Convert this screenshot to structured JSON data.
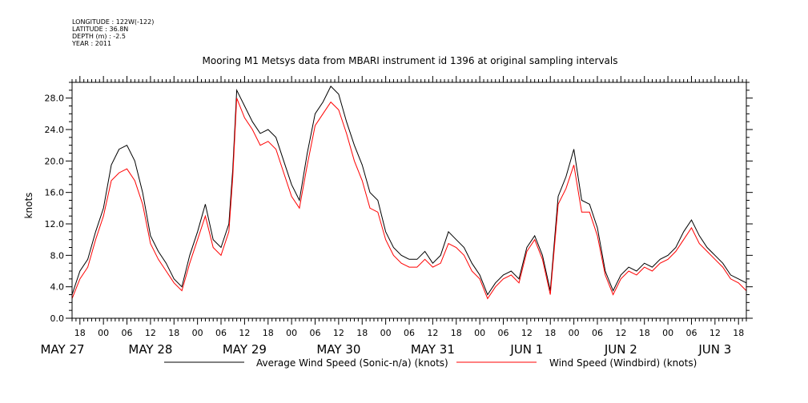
{
  "header": {
    "longitude": "LONGITUDE : 122W(-122)",
    "latitude": "LATITUDE : 36.8N",
    "depth": "DEPTH (m) : -2.5",
    "year": "YEAR : 2011"
  },
  "chart_data": {
    "type": "line",
    "title": "Mooring M1 Metsys data from MBARI instrument id 1396 at original sampling intervals",
    "ylabel": "knots",
    "xlabel": "",
    "ylim": [
      0,
      30
    ],
    "yticks": [
      "0.0",
      "4.0",
      "8.0",
      "12.0",
      "16.0",
      "20.0",
      "24.0",
      "28.0"
    ],
    "xlim": [
      "2011-05-27T16:00",
      "2011-06-03T20:00"
    ],
    "x_hour_ticks": [
      "18",
      "00",
      "06",
      "12",
      "18",
      "00",
      "06",
      "12",
      "18",
      "00",
      "06",
      "12",
      "18",
      "00",
      "06",
      "12",
      "18",
      "00",
      "06",
      "12",
      "18",
      "00",
      "06",
      "12",
      "18",
      "00",
      "06",
      "12",
      "18",
      "00",
      "06",
      "12"
    ],
    "x_date_labels": [
      {
        "label": "MAY 27",
        "x": "2011-05-27T12:00"
      },
      {
        "label": "MAY 28",
        "x": "2011-05-28T12:00"
      },
      {
        "label": "MAY 29",
        "x": "2011-05-29T12:00"
      },
      {
        "label": "MAY 30",
        "x": "2011-05-30T12:00"
      },
      {
        "label": "MAY 31",
        "x": "2011-05-31T12:00"
      },
      {
        "label": "JUN 1",
        "x": "2011-06-01T12:00"
      },
      {
        "label": "JUN 2",
        "x": "2011-06-02T12:00"
      },
      {
        "label": "JUN 3",
        "x": "2011-06-03T12:00"
      }
    ],
    "grid": false,
    "legend": "bottom",
    "series": [
      {
        "name": "Average Wind Speed (Sonic-n/a) (knots)",
        "color": "#000000",
        "points": [
          [
            "2011-05-27T16:00",
            3.0
          ],
          [
            "2011-05-27T18:00",
            6.0
          ],
          [
            "2011-05-27T20:00",
            7.5
          ],
          [
            "2011-05-27T22:00",
            11.0
          ],
          [
            "2011-05-28T00:00",
            14.0
          ],
          [
            "2011-05-28T02:00",
            19.5
          ],
          [
            "2011-05-28T04:00",
            21.5
          ],
          [
            "2011-05-28T06:00",
            22.0
          ],
          [
            "2011-05-28T08:00",
            20.0
          ],
          [
            "2011-05-28T10:00",
            16.0
          ],
          [
            "2011-05-28T12:00",
            10.5
          ],
          [
            "2011-05-28T14:00",
            8.5
          ],
          [
            "2011-05-28T16:00",
            7.0
          ],
          [
            "2011-05-28T18:00",
            5.0
          ],
          [
            "2011-05-28T20:00",
            4.0
          ],
          [
            "2011-05-28T22:00",
            8.0
          ],
          [
            "2011-05-29T00:00",
            11.0
          ],
          [
            "2011-05-29T02:00",
            14.5
          ],
          [
            "2011-05-29T04:00",
            10.0
          ],
          [
            "2011-05-29T06:00",
            9.0
          ],
          [
            "2011-05-29T08:00",
            12.0
          ],
          [
            "2011-05-29T09:00",
            19.0
          ],
          [
            "2011-05-29T10:00",
            29.0
          ],
          [
            "2011-05-29T12:00",
            27.0
          ],
          [
            "2011-05-29T14:00",
            25.0
          ],
          [
            "2011-05-29T16:00",
            23.5
          ],
          [
            "2011-05-29T18:00",
            24.0
          ],
          [
            "2011-05-29T20:00",
            23.0
          ],
          [
            "2011-05-29T22:00",
            20.0
          ],
          [
            "2011-05-30T00:00",
            17.0
          ],
          [
            "2011-05-30T02:00",
            15.0
          ],
          [
            "2011-05-30T04:00",
            21.0
          ],
          [
            "2011-05-30T06:00",
            26.0
          ],
          [
            "2011-05-30T08:00",
            27.5
          ],
          [
            "2011-05-30T10:00",
            29.5
          ],
          [
            "2011-05-30T12:00",
            28.5
          ],
          [
            "2011-05-30T14:00",
            25.0
          ],
          [
            "2011-05-30T16:00",
            22.0
          ],
          [
            "2011-05-30T18:00",
            19.5
          ],
          [
            "2011-05-30T20:00",
            16.0
          ],
          [
            "2011-05-30T22:00",
            15.0
          ],
          [
            "2011-05-31T00:00",
            11.0
          ],
          [
            "2011-05-31T02:00",
            9.0
          ],
          [
            "2011-05-31T04:00",
            8.0
          ],
          [
            "2011-05-31T06:00",
            7.5
          ],
          [
            "2011-05-31T08:00",
            7.5
          ],
          [
            "2011-05-31T10:00",
            8.5
          ],
          [
            "2011-05-31T12:00",
            7.0
          ],
          [
            "2011-05-31T14:00",
            8.0
          ],
          [
            "2011-05-31T16:00",
            11.0
          ],
          [
            "2011-05-31T18:00",
            10.0
          ],
          [
            "2011-05-31T20:00",
            9.0
          ],
          [
            "2011-05-31T22:00",
            7.0
          ],
          [
            "2011-06-01T00:00",
            5.5
          ],
          [
            "2011-06-01T02:00",
            3.0
          ],
          [
            "2011-06-01T04:00",
            4.5
          ],
          [
            "2011-06-01T06:00",
            5.5
          ],
          [
            "2011-06-01T08:00",
            6.0
          ],
          [
            "2011-06-01T10:00",
            5.0
          ],
          [
            "2011-06-01T12:00",
            9.0
          ],
          [
            "2011-06-01T14:00",
            10.5
          ],
          [
            "2011-06-01T16:00",
            8.0
          ],
          [
            "2011-06-01T18:00",
            3.5
          ],
          [
            "2011-06-01T20:00",
            15.5
          ],
          [
            "2011-06-01T22:00",
            18.0
          ],
          [
            "2011-06-02T00:00",
            21.5
          ],
          [
            "2011-06-02T02:00",
            15.0
          ],
          [
            "2011-06-02T04:00",
            14.5
          ],
          [
            "2011-06-02T06:00",
            11.5
          ],
          [
            "2011-06-02T08:00",
            6.0
          ],
          [
            "2011-06-02T10:00",
            3.5
          ],
          [
            "2011-06-02T12:00",
            5.5
          ],
          [
            "2011-06-02T14:00",
            6.5
          ],
          [
            "2011-06-02T16:00",
            6.0
          ],
          [
            "2011-06-02T18:00",
            7.0
          ],
          [
            "2011-06-02T20:00",
            6.5
          ],
          [
            "2011-06-02T22:00",
            7.5
          ],
          [
            "2011-06-03T00:00",
            8.0
          ],
          [
            "2011-06-03T02:00",
            9.0
          ],
          [
            "2011-06-03T04:00",
            11.0
          ],
          [
            "2011-06-03T06:00",
            12.5
          ],
          [
            "2011-06-03T08:00",
            10.5
          ],
          [
            "2011-06-03T10:00",
            9.0
          ],
          [
            "2011-06-03T12:00",
            8.0
          ],
          [
            "2011-06-03T14:00",
            7.0
          ],
          [
            "2011-06-03T16:00",
            5.5
          ],
          [
            "2011-06-03T18:00",
            5.0
          ],
          [
            "2011-06-03T20:00",
            4.5
          ]
        ]
      },
      {
        "name": "Wind Speed (Windbird) (knots)",
        "color": "#ff0000",
        "points": [
          [
            "2011-05-27T16:00",
            2.5
          ],
          [
            "2011-05-27T18:00",
            5.0
          ],
          [
            "2011-05-27T20:00",
            6.5
          ],
          [
            "2011-05-27T22:00",
            10.0
          ],
          [
            "2011-05-28T00:00",
            13.0
          ],
          [
            "2011-05-28T02:00",
            17.5
          ],
          [
            "2011-05-28T04:00",
            18.5
          ],
          [
            "2011-05-28T06:00",
            19.0
          ],
          [
            "2011-05-28T08:00",
            17.5
          ],
          [
            "2011-05-28T10:00",
            14.5
          ],
          [
            "2011-05-28T12:00",
            9.5
          ],
          [
            "2011-05-28T14:00",
            7.5
          ],
          [
            "2011-05-28T16:00",
            6.0
          ],
          [
            "2011-05-28T18:00",
            4.5
          ],
          [
            "2011-05-28T20:00",
            3.5
          ],
          [
            "2011-05-28T22:00",
            7.0
          ],
          [
            "2011-05-29T00:00",
            10.0
          ],
          [
            "2011-05-29T02:00",
            13.0
          ],
          [
            "2011-05-29T04:00",
            9.0
          ],
          [
            "2011-05-29T06:00",
            8.0
          ],
          [
            "2011-05-29T08:00",
            11.0
          ],
          [
            "2011-05-29T09:00",
            18.0
          ],
          [
            "2011-05-29T10:00",
            28.0
          ],
          [
            "2011-05-29T12:00",
            25.5
          ],
          [
            "2011-05-29T14:00",
            24.0
          ],
          [
            "2011-05-29T16:00",
            22.0
          ],
          [
            "2011-05-29T18:00",
            22.5
          ],
          [
            "2011-05-29T20:00",
            21.5
          ],
          [
            "2011-05-29T22:00",
            18.5
          ],
          [
            "2011-05-30T00:00",
            15.5
          ],
          [
            "2011-05-30T02:00",
            14.0
          ],
          [
            "2011-05-30T04:00",
            19.5
          ],
          [
            "2011-05-30T06:00",
            24.5
          ],
          [
            "2011-05-30T08:00",
            26.0
          ],
          [
            "2011-05-30T10:00",
            27.5
          ],
          [
            "2011-05-30T12:00",
            26.5
          ],
          [
            "2011-05-30T14:00",
            23.5
          ],
          [
            "2011-05-30T16:00",
            20.0
          ],
          [
            "2011-05-30T18:00",
            17.5
          ],
          [
            "2011-05-30T20:00",
            14.0
          ],
          [
            "2011-05-30T22:00",
            13.5
          ],
          [
            "2011-05-31T00:00",
            10.0
          ],
          [
            "2011-05-31T02:00",
            8.0
          ],
          [
            "2011-05-31T04:00",
            7.0
          ],
          [
            "2011-05-31T06:00",
            6.5
          ],
          [
            "2011-05-31T08:00",
            6.5
          ],
          [
            "2011-05-31T10:00",
            7.5
          ],
          [
            "2011-05-31T12:00",
            6.5
          ],
          [
            "2011-05-31T14:00",
            7.0
          ],
          [
            "2011-05-31T16:00",
            9.5
          ],
          [
            "2011-05-31T18:00",
            9.0
          ],
          [
            "2011-05-31T20:00",
            8.0
          ],
          [
            "2011-05-31T22:00",
            6.0
          ],
          [
            "2011-06-01T00:00",
            5.0
          ],
          [
            "2011-06-01T02:00",
            2.5
          ],
          [
            "2011-06-01T04:00",
            4.0
          ],
          [
            "2011-06-01T06:00",
            5.0
          ],
          [
            "2011-06-01T08:00",
            5.5
          ],
          [
            "2011-06-01T10:00",
            4.5
          ],
          [
            "2011-06-01T12:00",
            8.5
          ],
          [
            "2011-06-01T14:00",
            10.0
          ],
          [
            "2011-06-01T16:00",
            7.5
          ],
          [
            "2011-06-01T18:00",
            3.0
          ],
          [
            "2011-06-01T20:00",
            14.5
          ],
          [
            "2011-06-01T22:00",
            16.5
          ],
          [
            "2011-06-02T00:00",
            19.5
          ],
          [
            "2011-06-02T02:00",
            13.5
          ],
          [
            "2011-06-02T04:00",
            13.5
          ],
          [
            "2011-06-02T06:00",
            10.5
          ],
          [
            "2011-06-02T08:00",
            5.5
          ],
          [
            "2011-06-02T10:00",
            3.0
          ],
          [
            "2011-06-02T12:00",
            5.0
          ],
          [
            "2011-06-02T14:00",
            6.0
          ],
          [
            "2011-06-02T16:00",
            5.5
          ],
          [
            "2011-06-02T18:00",
            6.5
          ],
          [
            "2011-06-02T20:00",
            6.0
          ],
          [
            "2011-06-02T22:00",
            7.0
          ],
          [
            "2011-06-03T00:00",
            7.5
          ],
          [
            "2011-06-03T02:00",
            8.5
          ],
          [
            "2011-06-03T04:00",
            10.0
          ],
          [
            "2011-06-03T06:00",
            11.5
          ],
          [
            "2011-06-03T08:00",
            9.5
          ],
          [
            "2011-06-03T10:00",
            8.5
          ],
          [
            "2011-06-03T12:00",
            7.5
          ],
          [
            "2011-06-03T14:00",
            6.5
          ],
          [
            "2011-06-03T16:00",
            5.0
          ],
          [
            "2011-06-03T18:00",
            4.5
          ],
          [
            "2011-06-03T20:00",
            3.5
          ]
        ]
      }
    ]
  }
}
